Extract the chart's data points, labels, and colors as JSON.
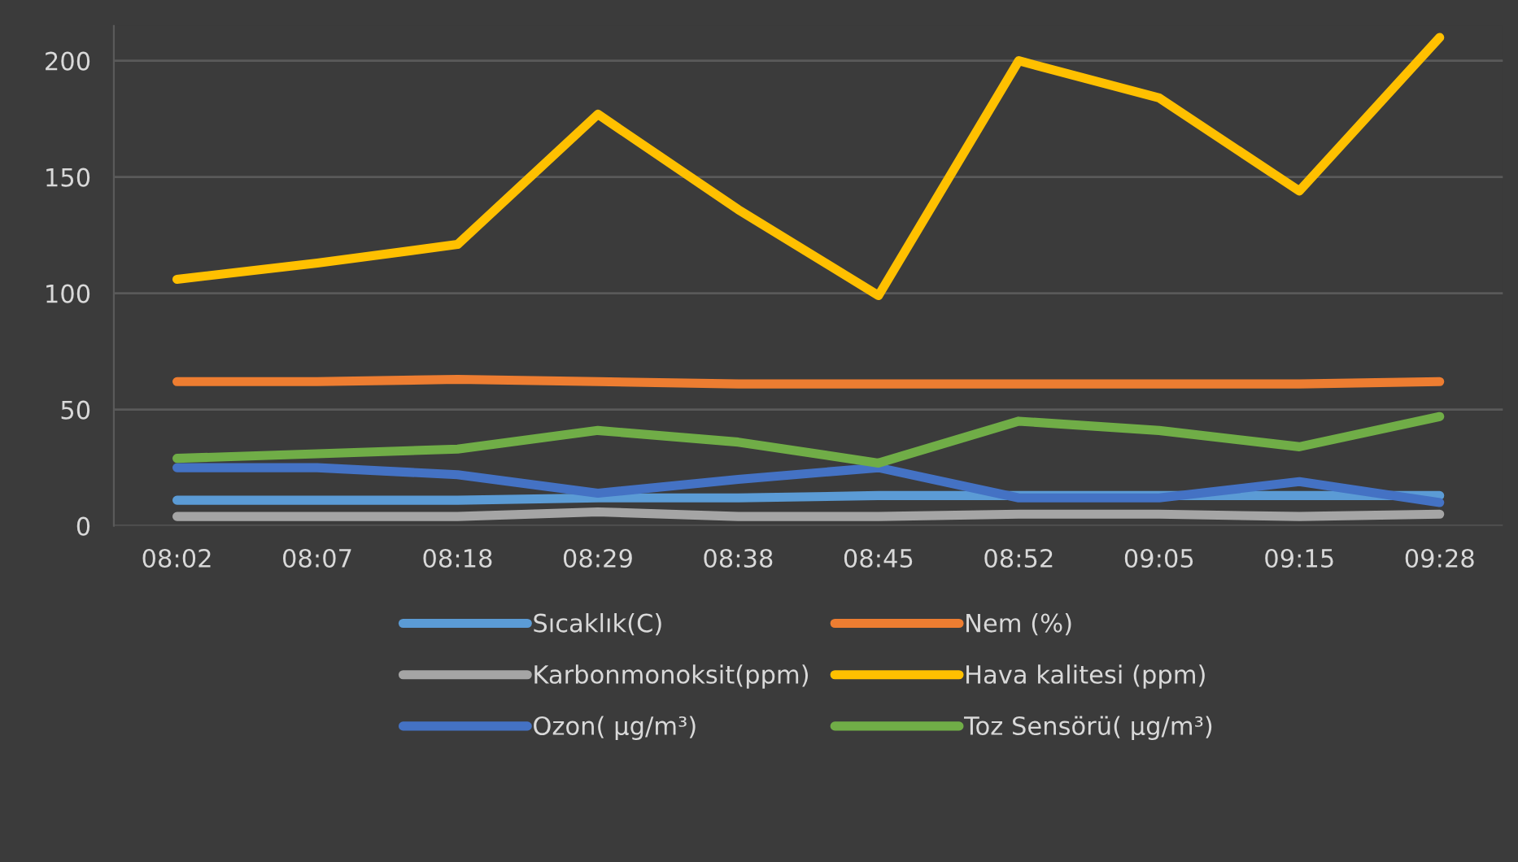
{
  "chart_data": {
    "type": "line",
    "categories": [
      "08:02",
      "08:07",
      "08:18",
      "08:29",
      "08:38",
      "08:45",
      "08:52",
      "09:05",
      "09:15",
      "09:28"
    ],
    "series": [
      {
        "name": "Sıcaklık(C)",
        "color": "#5b9bd5",
        "values": [
          11,
          11,
          11,
          12,
          12,
          13,
          13,
          13,
          13,
          13
        ]
      },
      {
        "name": "Nem (%)",
        "color": "#ed7d31",
        "values": [
          62,
          62,
          63,
          62,
          61,
          61,
          61,
          61,
          61,
          62
        ]
      },
      {
        "name": "Karbonmonoksit(ppm)",
        "color": "#a5a5a5",
        "values": [
          4,
          4,
          4,
          6,
          4,
          4,
          5,
          5,
          4,
          5
        ]
      },
      {
        "name": "Hava kalitesi (ppm)",
        "color": "#ffc000",
        "values": [
          106,
          113,
          121,
          177,
          136,
          99,
          200,
          184,
          144,
          210
        ]
      },
      {
        "name": "Ozon( µg/m³)",
        "color": "#4472c4",
        "values": [
          25,
          25,
          22,
          14,
          20,
          25,
          12,
          12,
          19,
          10
        ]
      },
      {
        "name": "Toz Sensörü( µg/m³)",
        "color": "#70ad47",
        "values": [
          29,
          31,
          33,
          41,
          36,
          27,
          45,
          41,
          34,
          47
        ]
      }
    ],
    "ylim": [
      0,
      215
    ],
    "yticks": [
      0,
      50,
      100,
      150,
      200
    ],
    "grid": "y",
    "legend": "bottom",
    "marker": "none",
    "line_style": "solid"
  }
}
